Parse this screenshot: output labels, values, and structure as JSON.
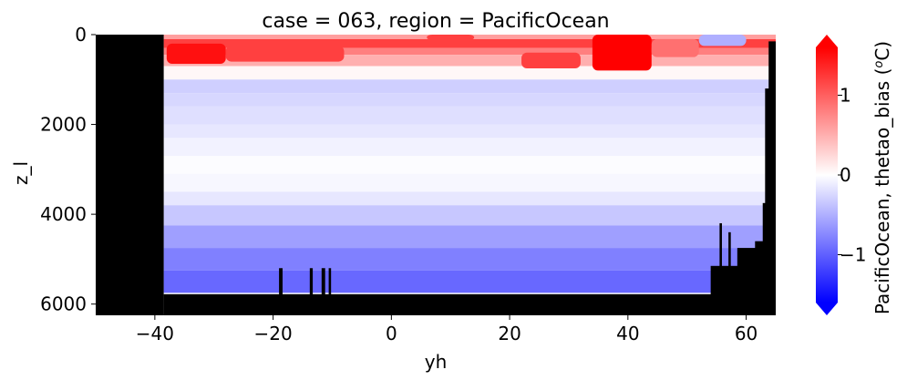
{
  "chart_data": {
    "type": "heatmap",
    "title": "case = 063, region = PacificOcean",
    "xlabel": "yh",
    "ylabel": "z_l",
    "xlim": [
      -50,
      65
    ],
    "ylim": [
      6250,
      0
    ],
    "y_inverted": true,
    "x_ticks": [
      -40,
      -20,
      0,
      20,
      40,
      60
    ],
    "x_tick_labels": [
      "−40",
      "−20",
      "0",
      "20",
      "40",
      "60"
    ],
    "y_ticks": [
      0,
      2000,
      4000,
      6000
    ],
    "y_tick_labels": [
      "0",
      "2000",
      "4000",
      "6000"
    ],
    "colorbar": {
      "label": "PacificOcean, thetao_bias (°C)",
      "label_text": "PacificOcean, thetao_bias (",
      "label_unit_super": "o",
      "label_unit_tail": "C)",
      "colormap": "bwr",
      "vmin": -1.6,
      "vmax": 1.6,
      "ticks": [
        1,
        0,
        -1
      ],
      "tick_labels": [
        "1",
        "0",
        "−1"
      ],
      "extend": "both"
    },
    "colors": {
      "land_mask": "#000000",
      "positive": "#ff0000",
      "negative": "#0000ff",
      "neutral": "#ffffff"
    },
    "depth_levels": [
      {
        "z_top": 0,
        "z_bot": 100,
        "value": 0.6
      },
      {
        "z_top": 100,
        "z_bot": 300,
        "value": 1.2
      },
      {
        "z_top": 300,
        "z_bot": 450,
        "value": 0.8
      },
      {
        "z_top": 450,
        "z_bot": 700,
        "value": 0.5
      },
      {
        "z_top": 700,
        "z_bot": 1000,
        "value": 0.05
      },
      {
        "z_top": 1000,
        "z_bot": 1300,
        "value": -0.3
      },
      {
        "z_top": 1300,
        "z_bot": 1600,
        "value": -0.25
      },
      {
        "z_top": 1600,
        "z_bot": 2000,
        "value": -0.2
      },
      {
        "z_top": 2000,
        "z_bot": 2300,
        "value": -0.15
      },
      {
        "z_top": 2300,
        "z_bot": 2700,
        "value": -0.08
      },
      {
        "z_top": 2700,
        "z_bot": 3100,
        "value": -0.02
      },
      {
        "z_top": 3100,
        "z_bot": 3500,
        "value": -0.05
      },
      {
        "z_top": 3500,
        "z_bot": 3800,
        "value": -0.15
      },
      {
        "z_top": 3800,
        "z_bot": 4250,
        "value": -0.35
      },
      {
        "z_top": 4250,
        "z_bot": 4750,
        "value": -0.6
      },
      {
        "z_top": 4750,
        "z_bot": 5250,
        "value": -0.8
      },
      {
        "z_top": 5250,
        "z_bot": 5750,
        "value": -0.95
      }
    ],
    "upper_anomalies": [
      {
        "x_from": -38,
        "x_to": -28,
        "z_top": 200,
        "z_bot": 650,
        "value": 1.5
      },
      {
        "x_from": -28,
        "x_to": -8,
        "z_top": 250,
        "z_bot": 600,
        "value": 1.2
      },
      {
        "x_from": 6,
        "x_to": 14,
        "z_top": 0,
        "z_bot": 120,
        "value": 1.2
      },
      {
        "x_from": 22,
        "x_to": 32,
        "z_top": 400,
        "z_bot": 750,
        "value": 1.2
      },
      {
        "x_from": 34,
        "x_to": 44,
        "z_top": 0,
        "z_bot": 800,
        "value": 1.6
      },
      {
        "x_from": 44,
        "x_to": 52,
        "z_top": 100,
        "z_bot": 500,
        "value": 0.9
      },
      {
        "x_from": 52,
        "x_to": 60,
        "z_top": 0,
        "z_bot": 250,
        "value": -0.5
      }
    ],
    "land_regions": [
      {
        "x_from": -50,
        "x_to": -38.5,
        "z_top": 0,
        "z_bot": 6250
      },
      {
        "x_from": -38.5,
        "x_to": 65,
        "z_top": 5780,
        "z_bot": 6250
      },
      {
        "x_from": 54,
        "x_to": 65,
        "z_top": 5150,
        "z_bot": 6250
      },
      {
        "x_from": 58.5,
        "x_to": 65,
        "z_top": 4750,
        "z_bot": 6250
      },
      {
        "x_from": 61.5,
        "x_to": 65,
        "z_top": 4600,
        "z_bot": 6250
      },
      {
        "x_from": 62.8,
        "x_to": 65,
        "z_top": 3750,
        "z_bot": 6250
      },
      {
        "x_from": 63.2,
        "x_to": 65,
        "z_top": 1200,
        "z_bot": 6250
      },
      {
        "x_from": 63.8,
        "x_to": 65,
        "z_top": 150,
        "z_bot": 6250
      },
      {
        "x_from": -19,
        "x_to": -18.4,
        "z_top": 5200,
        "z_bot": 6250
      },
      {
        "x_from": -13.8,
        "x_to": -13.3,
        "z_top": 5200,
        "z_bot": 6250
      },
      {
        "x_from": -11.8,
        "x_to": -11.2,
        "z_top": 5200,
        "z_bot": 6250
      },
      {
        "x_from": -10.6,
        "x_to": -10.2,
        "z_top": 5200,
        "z_bot": 6250
      },
      {
        "x_from": 55.5,
        "x_to": 55.9,
        "z_top": 4200,
        "z_bot": 6250
      },
      {
        "x_from": 57.0,
        "x_to": 57.4,
        "z_top": 4400,
        "z_bot": 6250
      }
    ]
  }
}
